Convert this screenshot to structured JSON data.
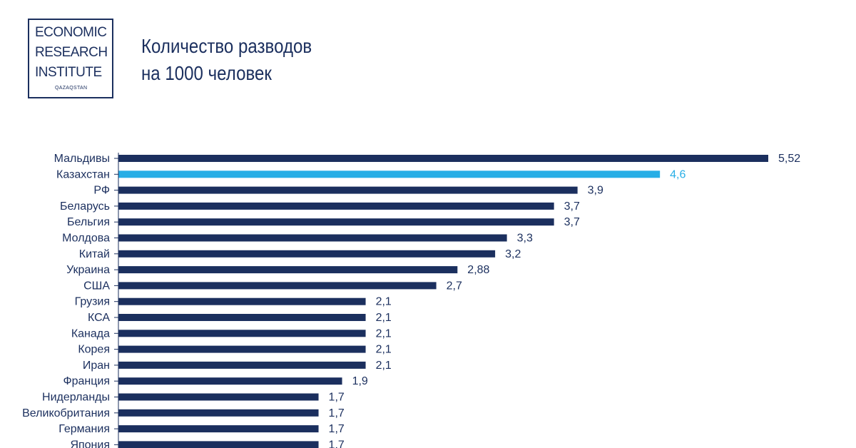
{
  "logo": {
    "line1": "ECONOMIC",
    "line2": "RESEARCH",
    "line3": "INSTITUTE",
    "sub": "QAZAQSTAN"
  },
  "header": {
    "title_line1": "Количество разводов",
    "title_line2": "на 1000 человек"
  },
  "colors": {
    "bar": "#1b2f5e",
    "highlight": "#27aee6",
    "text": "#1b2f5e"
  },
  "chart_data": {
    "type": "bar",
    "orientation": "horizontal",
    "title": "Количество разводов на 1000 человек",
    "highlight_category": "Казахстан",
    "categories": [
      "Мальдивы",
      "Казахстан",
      "РФ",
      "Беларусь",
      "Бельгия",
      "Молдова",
      "Китай",
      "Украина",
      "США",
      "Грузия",
      "КСА",
      "Канада",
      "Корея",
      "Иран",
      "Франция",
      "Нидерланды",
      "Великобритания",
      "Германия",
      "Япония"
    ],
    "values": [
      5.52,
      4.6,
      3.9,
      3.7,
      3.7,
      3.3,
      3.2,
      2.88,
      2.7,
      2.1,
      2.1,
      2.1,
      2.1,
      2.1,
      1.9,
      1.7,
      1.7,
      1.7,
      1.7
    ],
    "labels": [
      "5,52",
      "4,6",
      "3,9",
      "3,7",
      "3,7",
      "3,3",
      "3,2",
      "2,88",
      "2,7",
      "2,1",
      "2,1",
      "2,1",
      "2,1",
      "2,1",
      "1,9",
      "1,7",
      "1,7",
      "1,7",
      "1,7"
    ],
    "xlim": [
      0,
      5.52
    ]
  }
}
